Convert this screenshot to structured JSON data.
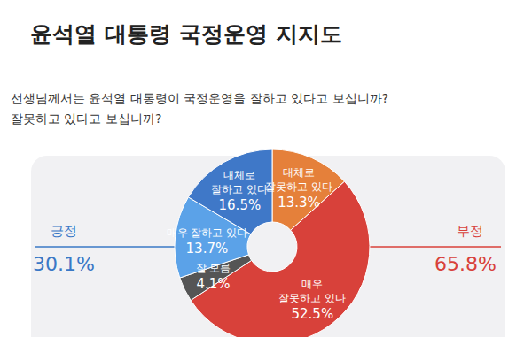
{
  "chart_data": {
    "type": "pie",
    "title": "윤석열 대통령 국정운영 지지도",
    "subtitle": [
      "선생님께서는 윤석열 대통령이 국정운영을 잘하고 있다고 보십니까?",
      "잘못하고 있다고 보십니까?"
    ],
    "categories": [
      "대체로 잘못하고 있다",
      "매우 잘못하고 있다",
      "잘 모름",
      "매우 잘하고 있다",
      "대체로 잘하고 있다"
    ],
    "values": [
      13.3,
      52.5,
      4.1,
      13.7,
      16.5
    ],
    "value_labels": [
      "13.3%",
      "52.5%",
      "4.1%",
      "13.7%",
      "16.5%"
    ],
    "colors": [
      "#e5803a",
      "#d8413a",
      "#555555",
      "#5ba2e8",
      "#3f78c8"
    ],
    "data_labels": true,
    "annotations": [
      {
        "text": "긍정",
        "value": 30.1,
        "label": "30.1%",
        "color": "#3a78c6"
      },
      {
        "text": "부정",
        "value": 65.8,
        "label": "65.8%",
        "color": "#d8413a"
      }
    ]
  }
}
